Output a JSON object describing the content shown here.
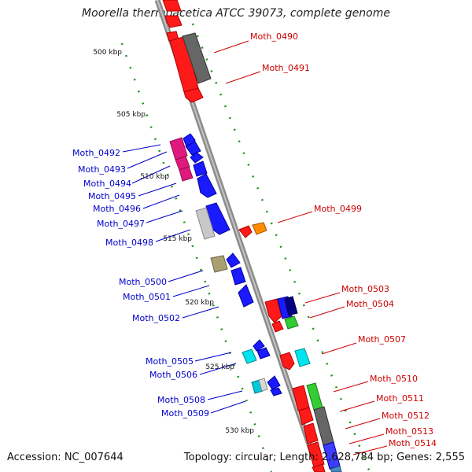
{
  "title": "Moorella thermoacetica ATCC 39073, complete genome",
  "accession": "Accession: NC_007644",
  "summary": "Topology: circular; Length: 2,628,784 bp; Genes: 2,555",
  "colors": {
    "backbone": "#999999",
    "tick": "#1f8f1f",
    "forward_label": "#cc0000",
    "reverse_label": "#0000cc"
  },
  "scale_labels": [
    "500 kbp",
    "505 kbp",
    "510 kbp",
    "515 kbp",
    "520 kbp",
    "525 kbp",
    "530 kbp"
  ],
  "forward_labels": [
    "Moth_0490",
    "Moth_0491",
    "Moth_0499",
    "Moth_0503",
    "Moth_0504",
    "Moth_0507",
    "Moth_0510",
    "Moth_0511",
    "Moth_0512",
    "Moth_0513",
    "Moth_0514"
  ],
  "reverse_labels": [
    "Moth_0492",
    "Moth_0493",
    "Moth_0494",
    "Moth_0495",
    "Moth_0496",
    "Moth_0497",
    "Moth_0498",
    "Moth_0500",
    "Moth_0501",
    "Moth_0502",
    "Moth_0505",
    "Moth_0506",
    "Moth_0508",
    "Moth_0509"
  ]
}
